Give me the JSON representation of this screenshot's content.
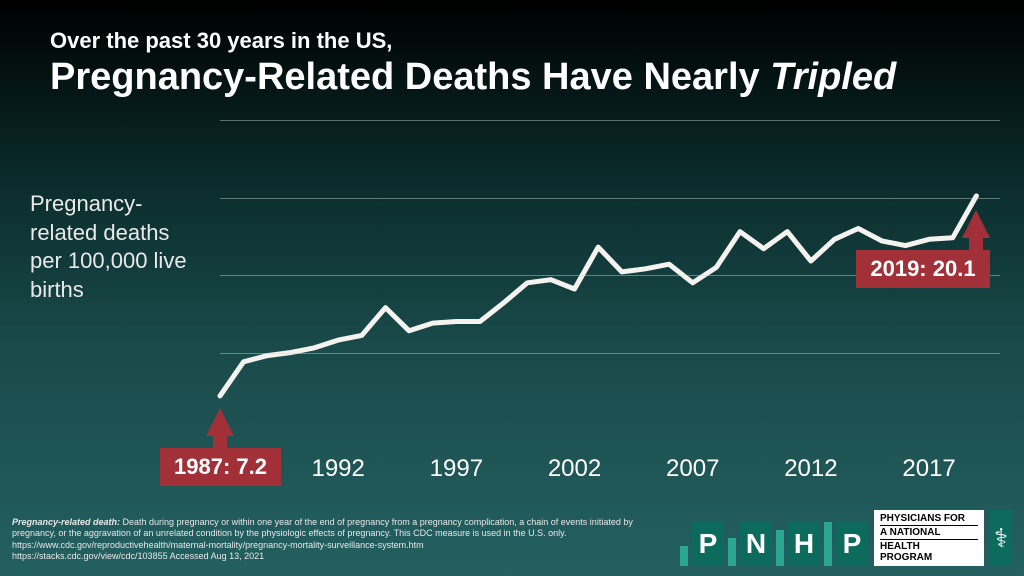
{
  "header": {
    "subtitle": "Over the past 30 years in the US,",
    "title_prefix": "Pregnancy-Related Deaths Have Nearly ",
    "title_emphasis": "Tripled"
  },
  "ylabel": "Pregnancy-related deaths per 100,000 live births",
  "chart": {
    "type": "line",
    "background_gradient": [
      "#000000",
      "#0a2a2a",
      "#1a4a4a",
      "#246060"
    ],
    "line_color": "#f5f3ef",
    "line_width": 5,
    "grid_color": "rgba(200,210,210,0.45)",
    "grid_y_values": [
      10,
      15,
      20,
      25
    ],
    "xlim": [
      1987,
      2020
    ],
    "ylim": [
      5,
      25
    ],
    "xtick_values": [
      1987,
      1992,
      1997,
      2002,
      2007,
      2012,
      2017
    ],
    "xtick_fontsize": 24,
    "series": {
      "years": [
        1987,
        1988,
        1989,
        1990,
        1991,
        1992,
        1993,
        1994,
        1995,
        1996,
        1997,
        1998,
        1999,
        2000,
        2001,
        2002,
        2003,
        2004,
        2005,
        2006,
        2007,
        2008,
        2009,
        2010,
        2011,
        2012,
        2013,
        2014,
        2015,
        2016,
        2017,
        2018,
        2019
      ],
      "values": [
        7.2,
        9.4,
        9.8,
        10.0,
        10.3,
        10.8,
        11.1,
        12.9,
        11.4,
        11.9,
        12.0,
        12.0,
        13.2,
        14.5,
        14.7,
        14.1,
        16.8,
        15.2,
        15.4,
        15.7,
        14.5,
        15.5,
        17.8,
        16.7,
        17.8,
        15.9,
        17.3,
        18.0,
        17.2,
        16.9,
        17.3,
        17.4,
        20.1
      ]
    }
  },
  "callouts": {
    "start": {
      "year": 1987,
      "value": 7.2,
      "label": "1987: 7.2",
      "bg": "#a23038",
      "fontsize": 22
    },
    "end": {
      "year": 2019,
      "value": 20.1,
      "label": "2019: 20.1",
      "bg": "#a23038",
      "fontsize": 22
    }
  },
  "footnote": {
    "lead": "Pregnancy-related death:",
    "body": " Death during pregnancy or within one year of the end of pregnancy from a pregnancy complication, a chain of events initiated by pregnancy, or the aggravation of an unrelated condition by the physiologic effects of pregnancy. This CDC measure is used in the U.S. only.",
    "url1": "https://www.cdc.gov/reproductivehealth/maternal-mortality/pregnancy-mortality-surveillance-system.htm",
    "url2": "https://stacks.cdc.gov/view/cdc/103855  Accessed Aug 13, 2021"
  },
  "logo": {
    "letters": [
      "P",
      "N",
      "H",
      "P"
    ],
    "bar_color": "#2aa793",
    "block_color": "#0d6b5e",
    "phys_lines": [
      "PHYSICIANS FOR",
      "A NATIONAL",
      "HEALTH",
      "PROGRAM"
    ]
  }
}
